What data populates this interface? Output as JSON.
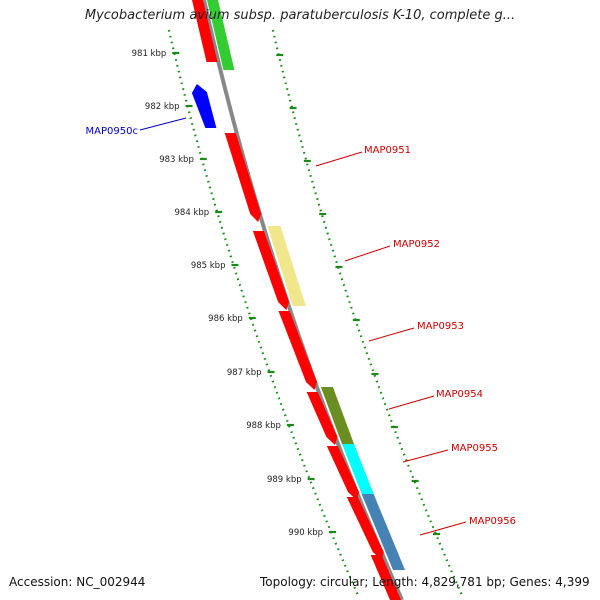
{
  "title": "Mycobacterium avium subsp. paratuberculosis K-10, complete g...",
  "footer": {
    "accession": "Accession: NC_002944",
    "summary": "Topology: circular; Length: 4,829,781 bp; Genes: 4,399"
  },
  "axis": {
    "unit": "kbp",
    "ticks": [
      "981 kbp",
      "982 kbp",
      "983 kbp",
      "984 kbp",
      "985 kbp",
      "986 kbp",
      "987 kbp",
      "988 kbp",
      "989 kbp",
      "990 kbp"
    ]
  },
  "genes": [
    {
      "label": "MAP0950c",
      "color": "#0000cc",
      "strand": "reverse"
    },
    {
      "label": "MAP0951",
      "color": "#cc0000",
      "strand": "forward"
    },
    {
      "label": "MAP0952",
      "color": "#cc0000",
      "strand": "forward"
    },
    {
      "label": "MAP0953",
      "color": "#cc0000",
      "strand": "forward"
    },
    {
      "label": "MAP0954",
      "color": "#cc0000",
      "strand": "forward"
    },
    {
      "label": "MAP0955",
      "color": "#cc0000",
      "strand": "forward"
    },
    {
      "label": "MAP0956",
      "color": "#cc0000",
      "strand": "forward"
    }
  ],
  "colors": {
    "cds": "#ff0000",
    "reverse_cds": "#0000ff",
    "backbone": "#888888",
    "tick": "#1a8a1a",
    "tick_label": "#222222",
    "cog_green": "#33cc33",
    "cog_yellow": "#f0e68c",
    "cog_olive": "#6b8e23",
    "cog_cyan": "#00ffff",
    "cog_steel": "#4682b4"
  }
}
